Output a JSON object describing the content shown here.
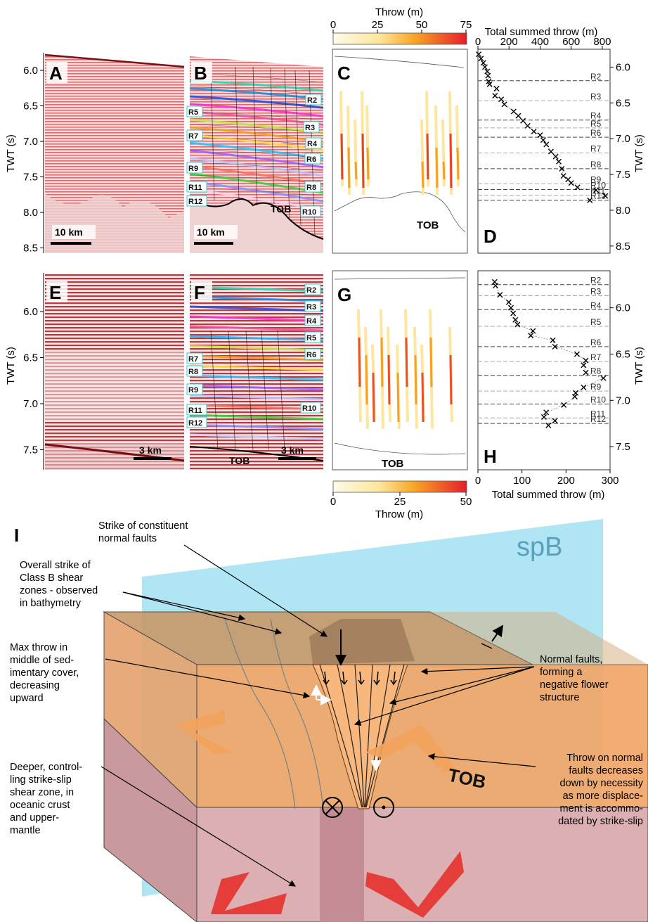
{
  "colors": {
    "seis_red": "#c8323a",
    "seis_light": "#f2d6d6",
    "throw_low": "#fff6d2",
    "throw_mid": "#f7a021",
    "throw_high": "#e8202a",
    "plane_blue": "#8fdcf0",
    "block_orange": "#f2a565",
    "crust_pink": "#d7a7aa",
    "arrow_red": "#e53e3a"
  },
  "top_panels": {
    "throw_scale_top": {
      "title": "Throw (m)",
      "ticks": [
        "0",
        "25",
        "50",
        "75"
      ]
    },
    "twt_label": "TWT (s)",
    "twt_ticks": [
      "6.0",
      "6.5",
      "7.0",
      "7.5",
      "8.0",
      "8.5"
    ],
    "A": {
      "letter": "A",
      "scale": "10 km"
    },
    "B": {
      "letter": "B",
      "scale": "10 km",
      "tob": "TOB",
      "horizons": [
        "R2",
        "R3",
        "R4",
        "R5",
        "R6",
        "R7",
        "R8",
        "R9",
        "R10",
        "R11",
        "R12"
      ]
    },
    "C": {
      "letter": "C",
      "tob": "TOB"
    },
    "D": {
      "letter": "D",
      "title": "Total summed throw (m)",
      "x_ticks": [
        "0",
        "200",
        "400",
        "600",
        "800"
      ],
      "horizons": [
        "R2",
        "R3",
        "R4",
        "R5",
        "R6",
        "R7",
        "R8",
        "R9",
        "R10",
        "R11",
        "R12"
      ]
    }
  },
  "bottom_panels": {
    "twt_label": "TWT (s)",
    "twt_ticks": [
      "6.0",
      "6.5",
      "7.0",
      "7.5"
    ],
    "E": {
      "letter": "E",
      "scale": "3 km"
    },
    "F": {
      "letter": "F",
      "scale": "3 km",
      "tob": "TOB",
      "horizons": [
        "R2",
        "R3",
        "R4",
        "R5",
        "R6",
        "R7",
        "R8",
        "R9",
        "R10",
        "R11",
        "R12"
      ]
    },
    "G": {
      "letter": "G",
      "tob": "TOB"
    },
    "H": {
      "letter": "H",
      "title": "Total summed throw (m)",
      "x_ticks": [
        "0",
        "100",
        "200",
        "300"
      ],
      "horizons": [
        "R2",
        "R3",
        "R4",
        "R5",
        "R6",
        "R7",
        "R8",
        "R9",
        "R10",
        "R11",
        "R12"
      ]
    },
    "throw_scale_bottom": {
      "title": "Throw (m)",
      "ticks": [
        "0",
        "25",
        "50"
      ]
    }
  },
  "panel_i": {
    "letter": "I",
    "plane_label": "spB",
    "tob": "TOB",
    "annotations": {
      "strike_constituent": [
        "Strike of constituent",
        "normal faults"
      ],
      "overall_strike": [
        "Overall strike of",
        "Class B shear",
        "zones - observed",
        "in bathymetry"
      ],
      "max_throw": [
        "Max throw in",
        "middle of sed-",
        "imentary cover,",
        "decreasing",
        "upward"
      ],
      "deeper": [
        "Deeper, control-",
        "ling strike-slip",
        "shear zone, in",
        "oceanic crust",
        "and upper-",
        "mantle"
      ],
      "normal_faults": [
        "Normal faults,",
        "forming a",
        "negative flower",
        "structure"
      ],
      "throw_decrease": [
        "Throw on normal",
        "faults decreases",
        "down by necessity",
        "as more displace-",
        "ment is accommo-",
        "dated by strike-slip"
      ]
    }
  },
  "chart_data": [
    {
      "type": "scatter",
      "panel": "D",
      "xlabel": "Total summed throw (m)",
      "ylabel": "TWT (s)",
      "xlim": [
        0,
        850
      ],
      "ylim": [
        8.6,
        5.75
      ],
      "points": [
        [
          5,
          5.82
        ],
        [
          20,
          5.88
        ],
        [
          35,
          5.94
        ],
        [
          45,
          6.0
        ],
        [
          60,
          6.06
        ],
        [
          65,
          6.12
        ],
        [
          70,
          6.2
        ],
        [
          75,
          6.24
        ],
        [
          120,
          6.3
        ],
        [
          110,
          6.4
        ],
        [
          150,
          6.45
        ],
        [
          170,
          6.52
        ],
        [
          230,
          6.62
        ],
        [
          260,
          6.68
        ],
        [
          290,
          6.75
        ],
        [
          320,
          6.82
        ],
        [
          360,
          6.9
        ],
        [
          400,
          6.95
        ],
        [
          420,
          7.02
        ],
        [
          440,
          7.08
        ],
        [
          470,
          7.18
        ],
        [
          500,
          7.25
        ],
        [
          520,
          7.32
        ],
        [
          540,
          7.42
        ],
        [
          550,
          7.52
        ],
        [
          580,
          7.57
        ],
        [
          600,
          7.62
        ],
        [
          640,
          7.68
        ],
        [
          760,
          7.72
        ],
        [
          820,
          7.8
        ],
        [
          720,
          7.86
        ]
      ],
      "horizons": [
        {
          "name": "R2",
          "twt": 6.19
        },
        {
          "name": "R3",
          "twt": 6.47
        },
        {
          "name": "R4",
          "twt": 6.74
        },
        {
          "name": "R5",
          "twt": 6.85
        },
        {
          "name": "R6",
          "twt": 6.98
        },
        {
          "name": "R7",
          "twt": 7.2
        },
        {
          "name": "R8",
          "twt": 7.42
        },
        {
          "name": "R9",
          "twt": 7.63
        },
        {
          "name": "R10",
          "twt": 7.71
        },
        {
          "name": "R11",
          "twt": 7.79
        },
        {
          "name": "R12",
          "twt": 7.86
        }
      ]
    },
    {
      "type": "scatter",
      "panel": "H",
      "xlabel": "Total summed throw (m)",
      "ylabel": "TWT (s)",
      "xlim": [
        0,
        300
      ],
      "ylim": [
        7.75,
        5.6
      ],
      "points": [
        [
          38,
          5.72
        ],
        [
          40,
          5.76
        ],
        [
          50,
          5.86
        ],
        [
          70,
          5.94
        ],
        [
          75,
          6.0
        ],
        [
          80,
          6.06
        ],
        [
          85,
          6.13
        ],
        [
          90,
          6.18
        ],
        [
          125,
          6.25
        ],
        [
          120,
          6.3
        ],
        [
          170,
          6.35
        ],
        [
          175,
          6.42
        ],
        [
          225,
          6.5
        ],
        [
          245,
          6.57
        ],
        [
          240,
          6.62
        ],
        [
          245,
          6.7
        ],
        [
          285,
          6.76
        ],
        [
          240,
          6.86
        ],
        [
          222,
          6.92
        ],
        [
          220,
          6.96
        ],
        [
          195,
          7.05
        ],
        [
          155,
          7.13
        ],
        [
          150,
          7.18
        ],
        [
          175,
          7.22
        ],
        [
          160,
          7.27
        ]
      ],
      "horizons": [
        {
          "name": "R2",
          "twt": 5.75
        },
        {
          "name": "R3",
          "twt": 5.87
        },
        {
          "name": "R4",
          "twt": 6.02
        },
        {
          "name": "R5",
          "twt": 6.2
        },
        {
          "name": "R6",
          "twt": 6.42
        },
        {
          "name": "R7",
          "twt": 6.58
        },
        {
          "name": "R8",
          "twt": 6.73
        },
        {
          "name": "R9",
          "twt": 6.9
        },
        {
          "name": "R10",
          "twt": 7.04
        },
        {
          "name": "R11",
          "twt": 7.19
        },
        {
          "name": "R12",
          "twt": 7.25
        }
      ]
    }
  ]
}
